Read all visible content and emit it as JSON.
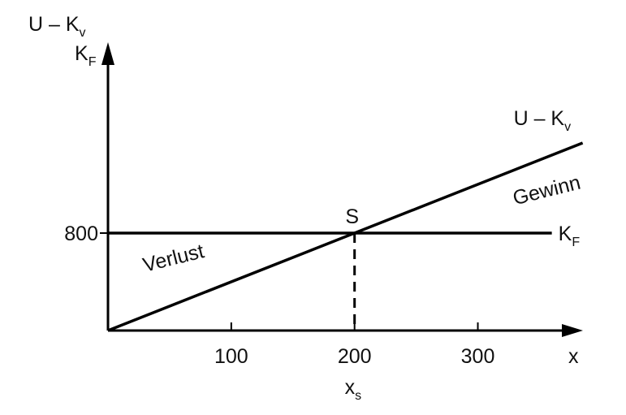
{
  "chart_data": {
    "type": "line",
    "y_label": [
      {
        "text": "U – K",
        "sub": "v"
      },
      {
        "text": "K",
        "sub": "F"
      }
    ],
    "x_label": "x",
    "xlim": [
      0,
      380
    ],
    "ylim": [
      0,
      2300
    ],
    "xticks": [
      100,
      200,
      300
    ],
    "yticks": [
      800
    ],
    "series": [
      {
        "label": {
          "text": "U – K",
          "sub": "v"
        },
        "color": "#000000",
        "x": [
          0,
          385
        ],
        "values": [
          0,
          1540
        ]
      },
      {
        "label": {
          "text": "K",
          "sub": "F"
        },
        "color": "#000000",
        "x": [
          0,
          360
        ],
        "values": [
          800,
          800
        ]
      }
    ],
    "break_even": {
      "label": "S",
      "x": 200,
      "y": 800,
      "x_label": {
        "text": "x",
        "sub": "s"
      }
    },
    "annotations": [
      {
        "text": "Verlust",
        "x": 30,
        "y": 480
      },
      {
        "text": "Gewinn",
        "x": 330,
        "y": 1030
      }
    ]
  }
}
